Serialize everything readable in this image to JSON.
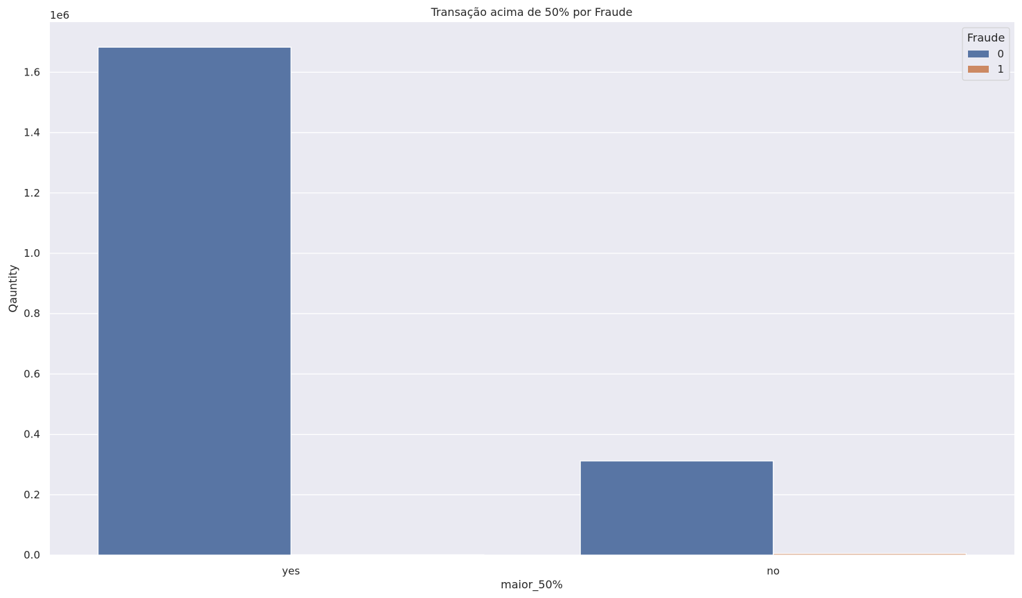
{
  "chart_data": {
    "type": "bar",
    "title": "Transação acima de 50% por Fraude",
    "xlabel": "maior_50%",
    "ylabel": "Qauntity",
    "y_offset_label": "1e6",
    "categories": [
      "yes",
      "no"
    ],
    "series": [
      {
        "name": "0",
        "values": [
          1683000,
          312000
        ],
        "color": "#5875a4"
      },
      {
        "name": "1",
        "values": [
          1200,
          5000
        ],
        "color": "#cc8963"
      }
    ],
    "ylim": [
      0,
      1766000
    ],
    "y_ticks": [
      0,
      200000,
      400000,
      600000,
      800000,
      1000000,
      1200000,
      1400000,
      1600000
    ],
    "y_tick_labels": [
      "0.0",
      "0.2",
      "0.4",
      "0.6",
      "0.8",
      "1.0",
      "1.2",
      "1.4",
      "1.6"
    ],
    "grid": true,
    "background": "#eaeaf2",
    "legend": {
      "title": "Fraude",
      "placement": "top-right"
    }
  }
}
